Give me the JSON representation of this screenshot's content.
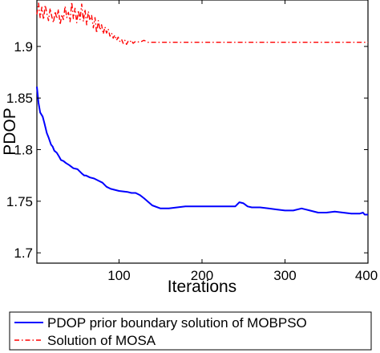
{
  "chart_data": {
    "type": "line",
    "title": "",
    "xlabel": "Iterations",
    "ylabel": "PDOP",
    "xlim": [
      1,
      400
    ],
    "ylim": [
      1.69,
      1.945
    ],
    "xticks": [
      100,
      200,
      300,
      400
    ],
    "yticks": [
      1.7,
      1.75,
      1.8,
      1.85,
      1.9
    ],
    "grid": false,
    "legend_position": "below-left",
    "series": [
      {
        "name": "PDOP prior boundary solution of MOBPSO",
        "color": "#0000ff",
        "line_style": "solid",
        "x": [
          1,
          3,
          5,
          8,
          10,
          13,
          15,
          18,
          20,
          22,
          25,
          28,
          30,
          33,
          36,
          40,
          45,
          50,
          55,
          58,
          60,
          65,
          70,
          75,
          80,
          85,
          90,
          100,
          110,
          115,
          120,
          125,
          130,
          140,
          150,
          160,
          170,
          180,
          190,
          200,
          220,
          240,
          245,
          250,
          255,
          260,
          270,
          280,
          290,
          300,
          310,
          320,
          330,
          340,
          350,
          360,
          370,
          380,
          390,
          394,
          396,
          400
        ],
        "y": [
          1.861,
          1.845,
          1.836,
          1.832,
          1.826,
          1.816,
          1.812,
          1.805,
          1.803,
          1.799,
          1.797,
          1.793,
          1.79,
          1.789,
          1.787,
          1.785,
          1.782,
          1.781,
          1.777,
          1.775,
          1.775,
          1.773,
          1.772,
          1.77,
          1.768,
          1.764,
          1.762,
          1.76,
          1.759,
          1.758,
          1.758,
          1.756,
          1.753,
          1.746,
          1.743,
          1.743,
          1.744,
          1.745,
          1.745,
          1.745,
          1.745,
          1.745,
          1.749,
          1.748,
          1.745,
          1.744,
          1.744,
          1.743,
          1.742,
          1.741,
          1.741,
          1.743,
          1.741,
          1.739,
          1.739,
          1.74,
          1.739,
          1.738,
          1.738,
          1.739,
          1.737,
          1.737
        ]
      },
      {
        "name": "Solution of MOSA",
        "color": "#ff0000",
        "line_style": "dashed",
        "x": [
          1,
          3,
          5,
          7,
          9,
          11,
          13,
          15,
          17,
          19,
          21,
          23,
          25,
          27,
          29,
          31,
          33,
          35,
          37,
          39,
          41,
          43,
          45,
          47,
          49,
          51,
          53,
          55,
          57,
          59,
          61,
          63,
          65,
          67,
          69,
          71,
          73,
          75,
          77,
          79,
          81,
          83,
          85,
          87,
          89,
          91,
          93,
          95,
          97,
          99,
          101,
          103,
          105,
          107,
          109,
          111,
          113,
          115,
          117,
          120,
          125,
          130,
          135,
          140,
          200,
          300,
          400
        ],
        "y": [
          1.931,
          1.942,
          1.928,
          1.938,
          1.926,
          1.94,
          1.932,
          1.925,
          1.937,
          1.929,
          1.923,
          1.934,
          1.927,
          1.936,
          1.921,
          1.931,
          1.926,
          1.939,
          1.928,
          1.933,
          1.924,
          1.943,
          1.927,
          1.937,
          1.923,
          1.935,
          1.926,
          1.941,
          1.924,
          1.936,
          1.921,
          1.934,
          1.925,
          1.93,
          1.918,
          1.928,
          1.913,
          1.925,
          1.916,
          1.921,
          1.912,
          1.919,
          1.913,
          1.917,
          1.91,
          1.913,
          1.908,
          1.911,
          1.906,
          1.909,
          1.905,
          1.907,
          1.903,
          1.906,
          1.902,
          1.905,
          1.904,
          1.906,
          1.903,
          1.905,
          1.904,
          1.906,
          1.904,
          1.904,
          1.904,
          1.904,
          1.904
        ]
      }
    ]
  }
}
